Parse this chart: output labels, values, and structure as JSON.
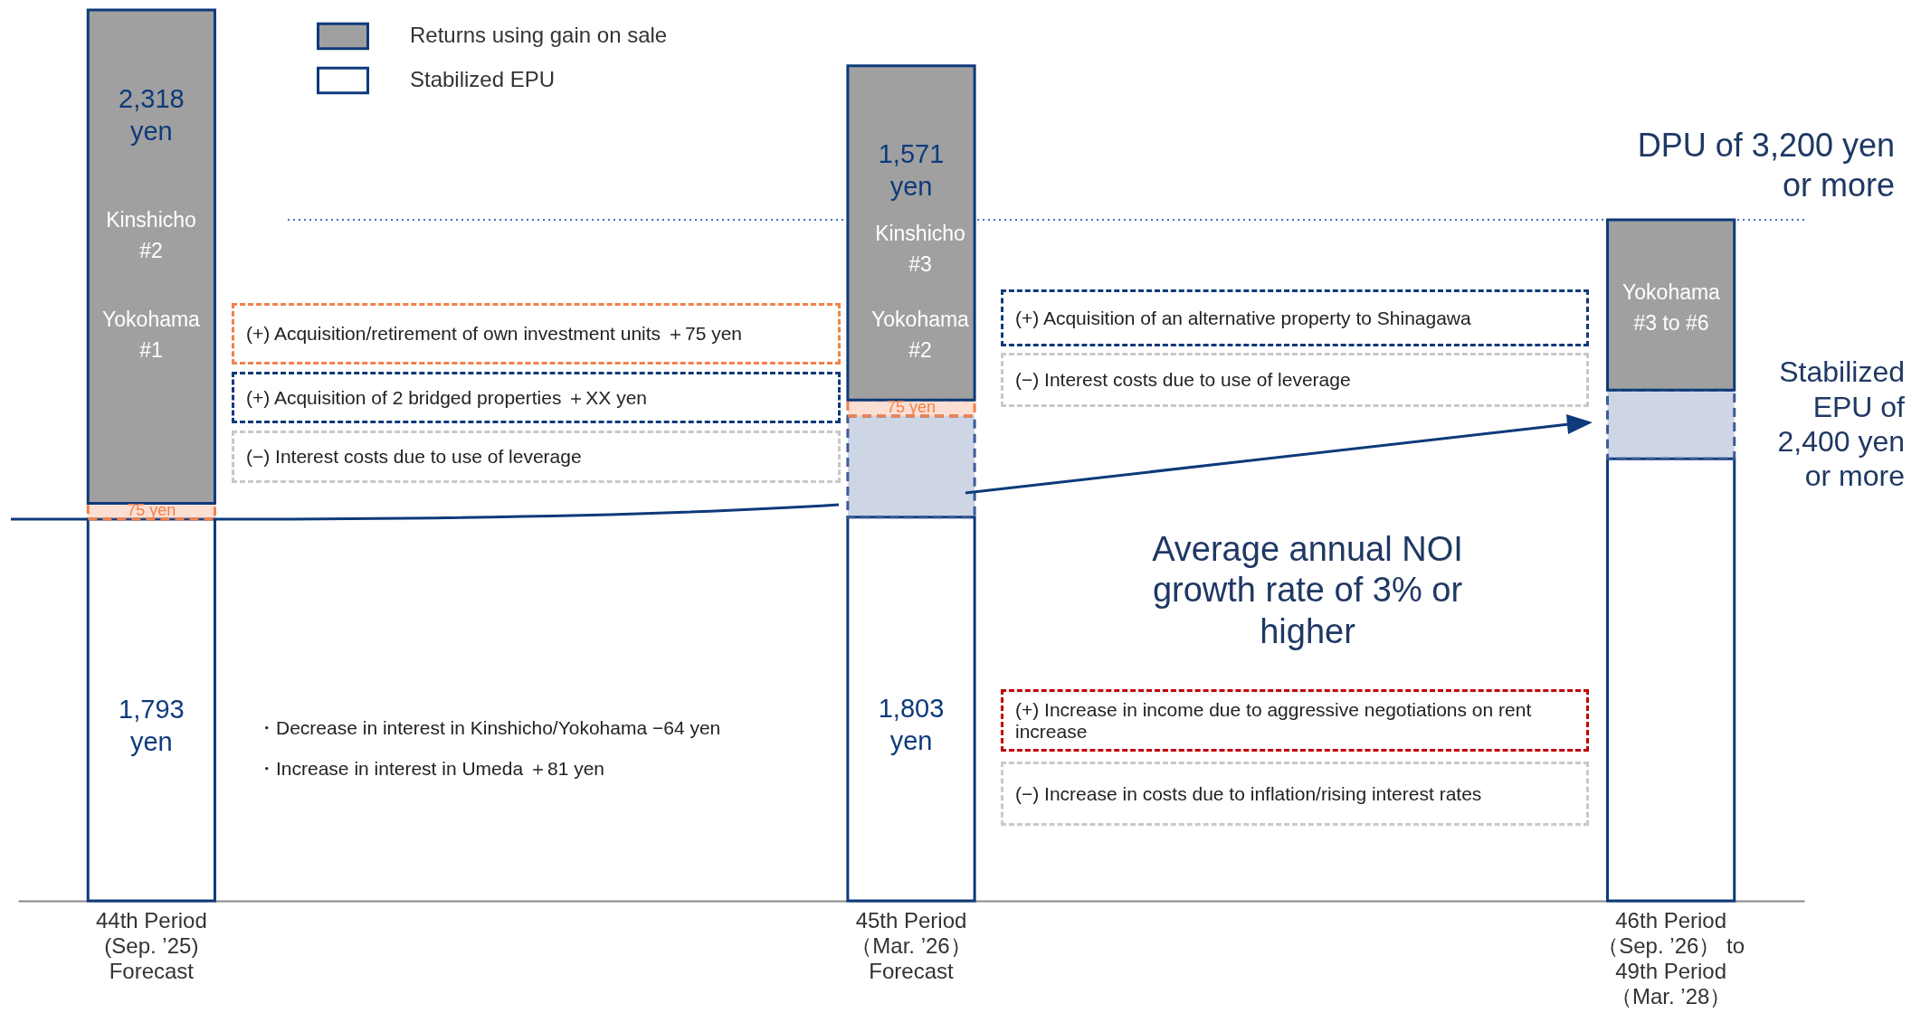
{
  "chart_data": {
    "type": "bar",
    "stacked": true,
    "legend": "top left",
    "categories": [
      "44th Period (Sep. ’25) Forecast",
      "45th Period（Mar. ’26） Forecast",
      "46th Period（Sep. ’26） to 49th Period（Mar. ’28）"
    ],
    "series": [
      {
        "name": "Stabilized EPU",
        "color": "#ffffff",
        "values": [
          1793,
          1803,
          2077
        ],
        "value_labels": [
          "1,793 yen",
          "1,803 yen",
          null
        ]
      },
      {
        "color": "#3c5a99",
        "line_style": "dashed",
        "values": [
          null,
          475,
          323
        ]
      },
      {
        "color": "#f4804a",
        "line_style": "dashed",
        "values": [
          75,
          75,
          null
        ],
        "value_labels": [
          "75 yen",
          "75 yen",
          null
        ]
      },
      {
        "name": "Returns using gain on sale",
        "color": "#a0a0a0",
        "values": [
          2318,
          1571,
          800
        ],
        "value_labels": [
          "2,318 yen",
          "1,571 yen",
          null
        ]
      }
    ],
    "ref_lines": [
      {
        "axis": "y",
        "value": 3200,
        "label": "DPU of 3,200 yen or more",
        "color": "#4a6fc0",
        "line_style": "dotted"
      }
    ],
    "annotations": [
      "Kinshicho #2",
      "Yokohama #1",
      "Kinshicho #3",
      "Yokohama #2",
      "Yokohama #3 to #6",
      "(+) Acquisition/retirement of own investment units  ＋75 yen",
      "(+) Acquisition of 2 bridged properties  ＋XX yen",
      "(−) Interest costs due to use of leverage",
      "・Decrease in interest in Kinshicho/Yokohama  −64 yen",
      "・Increase in interest in Umeda  ＋81 yen",
      "(+) Acquisition of an alternative property to Shinagawa",
      "(−) Interest costs due to use of leverage",
      "(+) Increase in income due to aggressive negotiations on rent increase",
      "(−) Increase in costs due to inflation/rising interest rates",
      "Average annual NOI growth rate of 3% or higher",
      "Stabilized EPU of 2,400 yen or more"
    ]
  }
}
